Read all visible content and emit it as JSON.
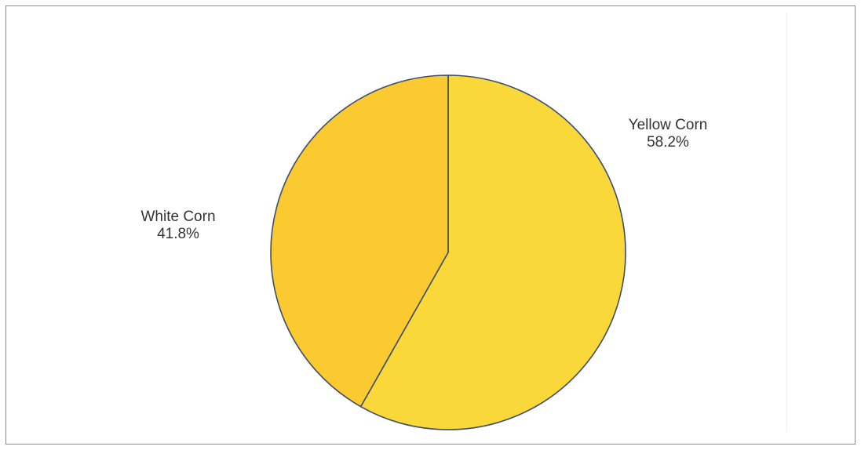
{
  "chart_data": {
    "type": "pie",
    "title": "",
    "slices": [
      {
        "label": "Yellow Corn",
        "value": 58.2,
        "value_label": "58.2%",
        "color": "#fbd83a"
      },
      {
        "label": "White Corn",
        "value": 41.8,
        "value_label": "41.8%",
        "color": "#fbc930"
      }
    ],
    "start_angle": "top (12 o'clock), clockwise",
    "border_color": "#3b4f6b",
    "legend": "none",
    "labels": "outside"
  }
}
